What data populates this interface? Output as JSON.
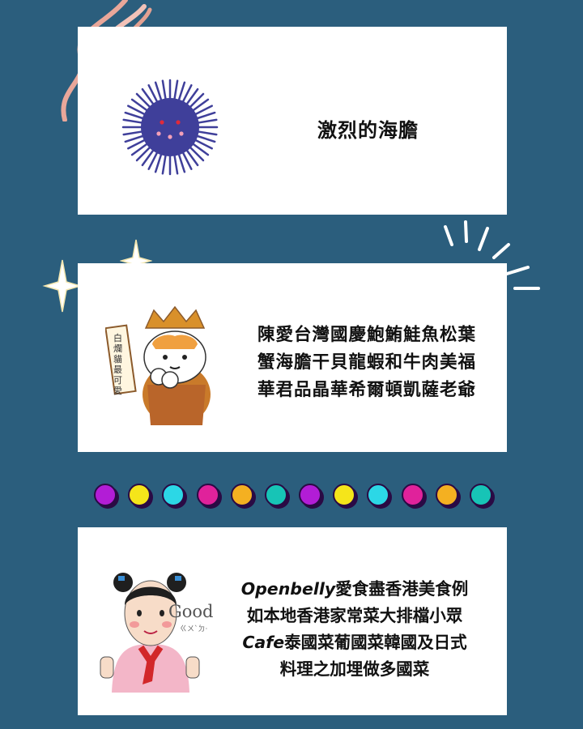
{
  "section1": {
    "title": "激烈的海膽"
  },
  "section2": {
    "lines": [
      "陳愛台灣國慶鮑鮪鮭魚松葉",
      "蟹海膽干貝龍蝦和牛肉美福",
      "華君品晶華希爾頓凱薩老爺"
    ],
    "sticker_text": "白爛貓最可愛"
  },
  "divider": {
    "dot_colors": [
      "#b21dd6",
      "#f5e51a",
      "#2cd7e6",
      "#e0229b",
      "#f4b021",
      "#17c4b6",
      "#b21dd6",
      "#f5e51a",
      "#2cd7e6",
      "#e0229b",
      "#f4b021",
      "#17c4b6"
    ]
  },
  "section3": {
    "lines": [
      {
        "en": "Openbelly",
        "zh": "愛食盡香港美食例"
      },
      {
        "en": "",
        "zh": "如本地香港家常菜大排檔小眾"
      },
      {
        "en": "Cafe",
        "zh": "泰國菜葡國菜韓國及日式"
      },
      {
        "en": "",
        "zh": "料理之加埋做多國菜"
      }
    ],
    "sticker_word": "Good",
    "sticker_zhuyin": "ㄍㄨˋㄉ·"
  }
}
